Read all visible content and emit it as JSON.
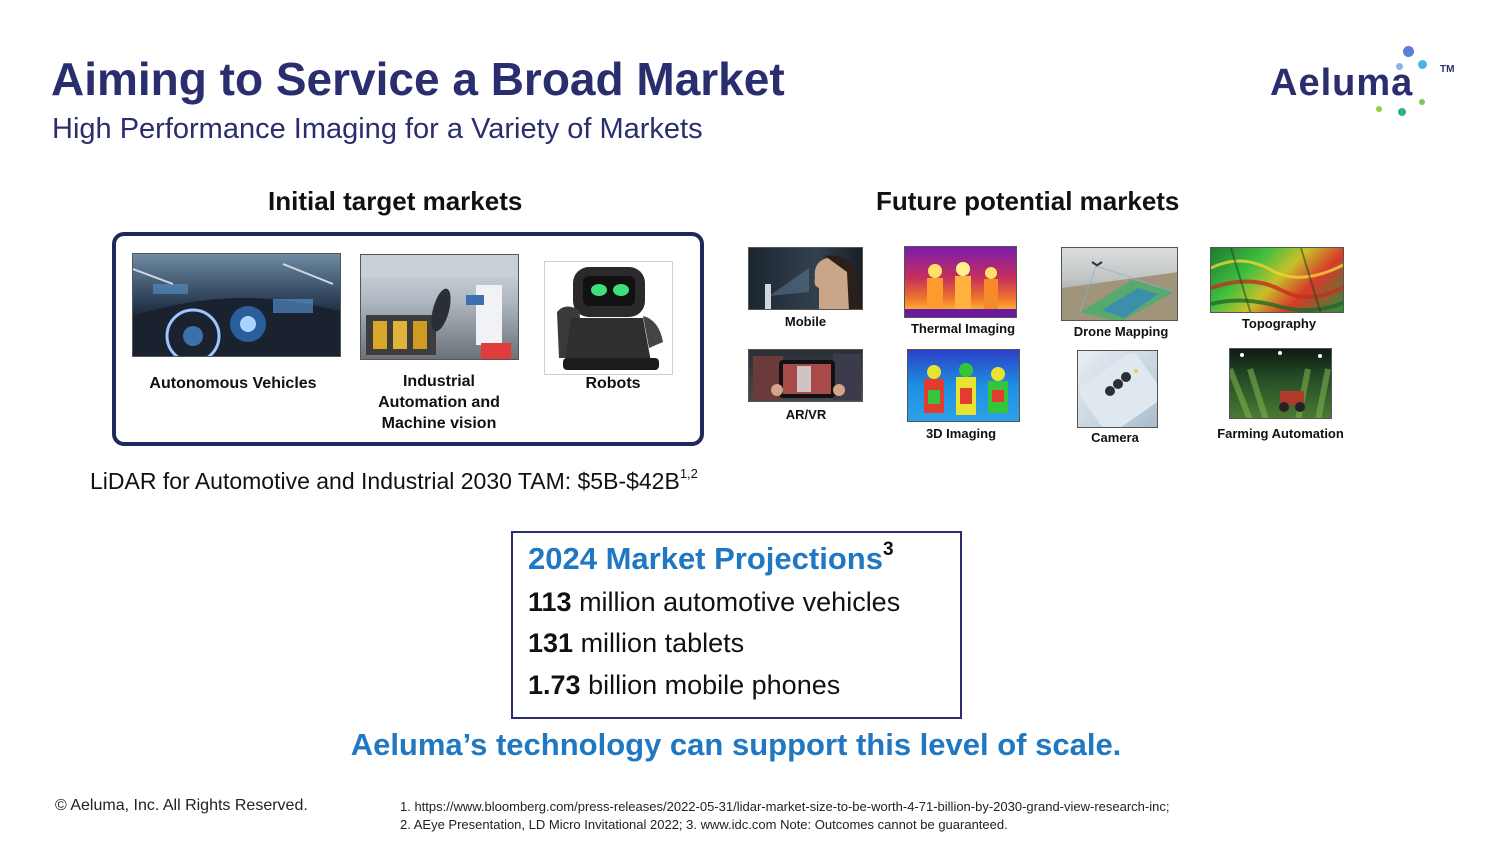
{
  "header": {
    "title": "Aiming to Service a Broad Market",
    "subtitle": "High Performance Imaging for a Variety of Markets",
    "logo_text": "Aeluma",
    "logo_tm": "TM"
  },
  "initial": {
    "heading": "Initial target markets",
    "items": [
      {
        "label": "Autonomous  Vehicles",
        "icon": "car-dashboard-photo"
      },
      {
        "label": "Industrial Automation  and Machine vision",
        "icon": "robot-arm-photo"
      },
      {
        "label": "Robots",
        "icon": "robot-photo"
      }
    ]
  },
  "future": {
    "heading": "Future potential markets",
    "items": [
      {
        "label": "Mobile",
        "icon": "face-scan-photo"
      },
      {
        "label": "Thermal Imaging",
        "icon": "thermal-photo"
      },
      {
        "label": "Drone Mapping",
        "icon": "drone-map-photo"
      },
      {
        "label": "Topography",
        "icon": "topography-photo"
      },
      {
        "label": "AR/VR",
        "icon": "ar-tablet-photo"
      },
      {
        "label": "3D Imaging",
        "icon": "3d-imaging-photo"
      },
      {
        "label": "Camera",
        "icon": "phone-camera-photo"
      },
      {
        "label": "Farming Automation",
        "icon": "farm-photo"
      }
    ]
  },
  "tam": {
    "text": "LiDAR for Automotive and Industrial 2030 TAM: $5B-$42B",
    "sup": "1,2"
  },
  "projections": {
    "title": "2024 Market Projections",
    "title_sup": "3",
    "lines": [
      {
        "value": "113",
        "text": " million automotive vehicles"
      },
      {
        "value": "131",
        "text": " million tablets"
      },
      {
        "value": "1.73",
        "text": " billion mobile phones"
      }
    ]
  },
  "tagline": "Aeluma’s technology can support this level of scale.",
  "footer": {
    "copyright": "© Aeluma, Inc. All Rights Reserved.",
    "footnote1": "1. https://www.bloomberg.com/press-releases/2022-05-31/lidar-market-size-to-be-worth-4-71-billion-by-2030-grand-view-research-inc;",
    "footnote2": "2. AEye Presentation, LD Micro Invitational 2022; 3. www.idc.com Note: Outcomes cannot be guaranteed."
  },
  "colors": {
    "navy": "#2b2e6e",
    "accent_blue": "#1f78c1",
    "box_border": "#1e2a5a"
  }
}
